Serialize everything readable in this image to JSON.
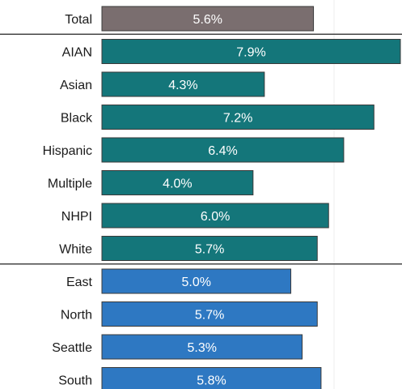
{
  "chart_data": {
    "type": "bar",
    "orientation": "horizontal",
    "title": "",
    "xlabel": "",
    "ylabel": "",
    "xlim": [
      0,
      7.9
    ],
    "grid": false,
    "groups": [
      {
        "color": "#7a6e6f",
        "categories": [
          "Total"
        ],
        "values": [
          5.6
        ],
        "labels": [
          "5.6%"
        ]
      },
      {
        "color": "#14767a",
        "categories": [
          "AIAN",
          "Asian",
          "Black",
          "Hispanic",
          "Multiple",
          "NHPI",
          "White"
        ],
        "values": [
          7.9,
          4.3,
          7.2,
          6.4,
          4.0,
          6.0,
          5.7
        ],
        "labels": [
          "7.9%",
          "4.3%",
          "7.2%",
          "6.4%",
          "4.0%",
          "6.0%",
          "5.7%"
        ]
      },
      {
        "color": "#2e78c2",
        "categories": [
          "East",
          "North",
          "Seattle",
          "South"
        ],
        "values": [
          5.0,
          5.7,
          5.3,
          5.8
        ],
        "labels": [
          "5.0%",
          "5.7%",
          "5.3%",
          "5.8%"
        ]
      }
    ]
  }
}
